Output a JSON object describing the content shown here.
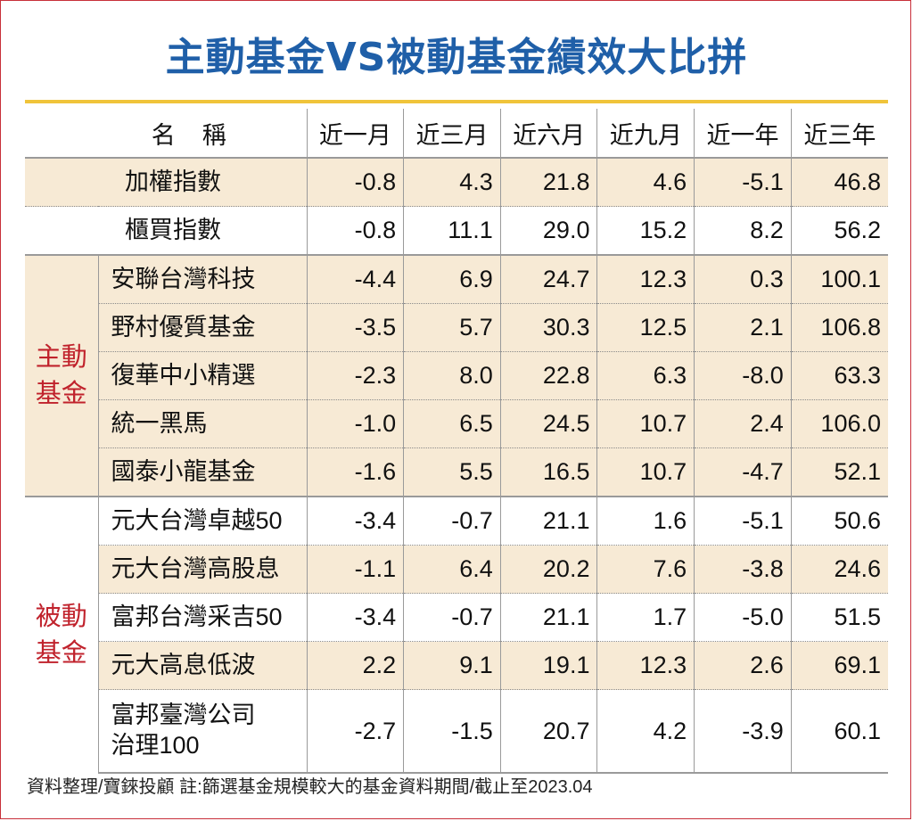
{
  "title": "主動基金VS被動基金績效大比拼",
  "headers": {
    "name": "名稱",
    "cols": [
      "近一月",
      "近三月",
      "近六月",
      "近九月",
      "近一年",
      "近三年"
    ]
  },
  "groups": {
    "active": "主動基金",
    "passive": "被動基金"
  },
  "rows": [
    {
      "name": "加權指數",
      "values": [
        "-0.8",
        "4.3",
        "21.8",
        "4.6",
        "-5.1",
        "46.8"
      ]
    },
    {
      "name": "櫃買指數",
      "values": [
        "-0.8",
        "11.1",
        "29.0",
        "15.2",
        "8.2",
        "56.2"
      ]
    },
    {
      "name": "安聯台灣科技",
      "values": [
        "-4.4",
        "6.9",
        "24.7",
        "12.3",
        "0.3",
        "100.1"
      ]
    },
    {
      "name": "野村優質基金",
      "values": [
        "-3.5",
        "5.7",
        "30.3",
        "12.5",
        "2.1",
        "106.8"
      ]
    },
    {
      "name": "復華中小精選",
      "values": [
        "-2.3",
        "8.0",
        "22.8",
        "6.3",
        "-8.0",
        "63.3"
      ]
    },
    {
      "name": "統一黑馬",
      "values": [
        "-1.0",
        "6.5",
        "24.5",
        "10.7",
        "2.4",
        "106.0"
      ]
    },
    {
      "name": "國泰小龍基金",
      "values": [
        "-1.6",
        "5.5",
        "16.5",
        "10.7",
        "-4.7",
        "52.1"
      ]
    },
    {
      "name": "元大台灣卓越50",
      "values": [
        "-3.4",
        "-0.7",
        "21.1",
        "1.6",
        "-5.1",
        "50.6"
      ]
    },
    {
      "name": "元大台灣高股息",
      "values": [
        "-1.1",
        "6.4",
        "20.2",
        "7.6",
        "-3.8",
        "24.6"
      ]
    },
    {
      "name": "富邦台灣采吉50",
      "values": [
        "-3.4",
        "-0.7",
        "21.1",
        "1.7",
        "-5.0",
        "51.5"
      ]
    },
    {
      "name": "元大高息低波",
      "values": [
        "2.2",
        "9.1",
        "19.1",
        "12.3",
        "2.6",
        "69.1"
      ]
    },
    {
      "name_line1": "富邦臺灣公司",
      "name_line2": "治理100",
      "values": [
        "-2.7",
        "-1.5",
        "20.7",
        "4.2",
        "-3.9",
        "60.1"
      ]
    }
  ],
  "footer": "資料整理/寶錸投顧 註:篩選基金規模較大的基金資料期間/截止至2023.04",
  "colors": {
    "title": "#1f5fa8",
    "accent_rule": "#f0c43a",
    "group_label": "#c0222c",
    "row_tint": "#f7ead5"
  }
}
